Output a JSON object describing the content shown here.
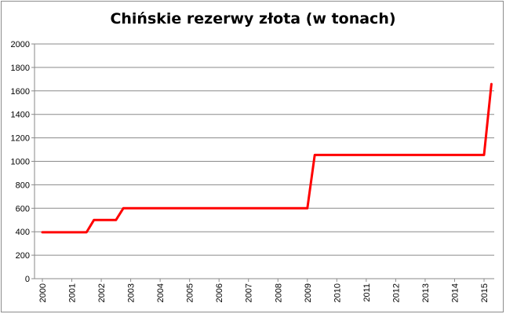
{
  "chart_data": {
    "type": "line",
    "title": "Chińskie rezerwy złota (w tonach)",
    "xlabel": "",
    "ylabel": "",
    "ylim": [
      0,
      2000
    ],
    "xlim": [
      2000,
      2015
    ],
    "y_ticks": [
      "0",
      "200",
      "400",
      "600",
      "800",
      "1000",
      "1200",
      "1400",
      "1600",
      "1800",
      "2000"
    ],
    "x_ticks": [
      "2000",
      "2001",
      "2002",
      "2003",
      "2004",
      "2005",
      "2006",
      "2007",
      "2008",
      "2009",
      "2010",
      "2011",
      "2012",
      "2013",
      "2014",
      "2015"
    ],
    "grid": true,
    "line_color": "#ff0000",
    "series": [
      {
        "x": [
          2000.0,
          2001.5,
          2001.75,
          2002.5,
          2002.75,
          2009.0,
          2009.25,
          2015.0,
          2015.25
        ],
        "values": [
          395,
          395,
          500,
          500,
          600,
          600,
          1054,
          1054,
          1658
        ]
      }
    ]
  }
}
